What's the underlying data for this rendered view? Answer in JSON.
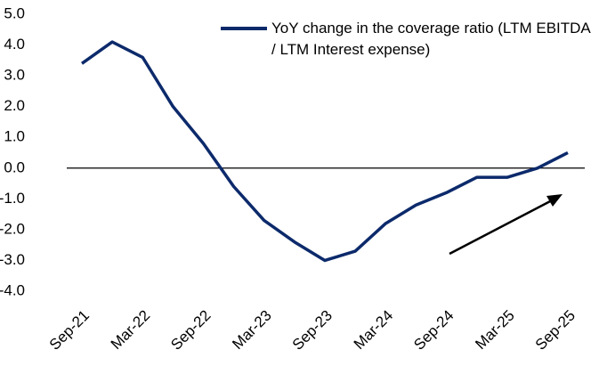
{
  "chart_data": {
    "type": "line",
    "categories": [
      "Sep-21",
      null,
      "Mar-22",
      null,
      "Sep-22",
      null,
      "Mar-23",
      null,
      "Sep-23",
      null,
      "Mar-24",
      null,
      "Sep-24",
      null,
      "Mar-25",
      null,
      "Sep-25"
    ],
    "series": [
      {
        "name": "YoY change in the coverage ratio (LTM EBITDA / LTM Interest expense)",
        "color": "#0c2a6b",
        "values": [
          3.4,
          4.1,
          3.6,
          2.0,
          0.8,
          -0.6,
          -1.7,
          -2.4,
          -3.0,
          -2.7,
          -1.8,
          -1.2,
          -0.8,
          -0.3,
          -0.3,
          0.0,
          0.5
        ]
      }
    ],
    "ylim": [
      -4.0,
      5.0
    ],
    "yticks": [
      {
        "value": 5,
        "label": "5.0"
      },
      {
        "value": 4,
        "label": "4.0"
      },
      {
        "value": 3,
        "label": "3.0"
      },
      {
        "value": 2,
        "label": "2.0"
      },
      {
        "value": 1,
        "label": "1.0"
      },
      {
        "value": 0,
        "label": "0.0"
      },
      {
        "value": -1,
        "label": "-1.0"
      },
      {
        "value": -2,
        "label": "-2.0"
      },
      {
        "value": -3,
        "label": "-3.0"
      },
      {
        "value": -4,
        "label": "-4.0"
      }
    ],
    "grid": false
  }
}
